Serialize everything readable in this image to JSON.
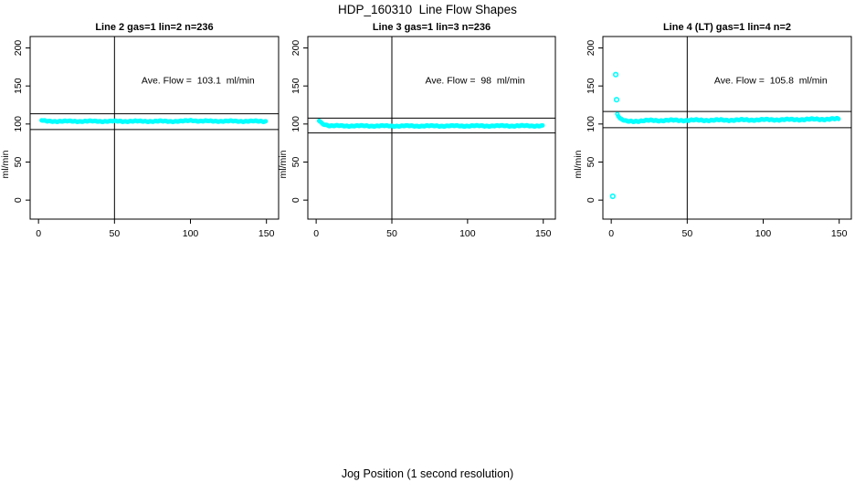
{
  "figure": {
    "title": "HDP_160310  Line Flow Shapes",
    "xlabel": "Jog Position (1 second resolution)",
    "ylabel": "ml/min",
    "point_color": "#00ffff",
    "line_color": "#000000"
  },
  "chart_data": [
    {
      "type": "scatter",
      "title": "Line 2 gas=1 lin=2 n=236",
      "n": 236,
      "ave_flow": 103.1,
      "ave_flow_label": "Ave. Flow =  103.1  ml/min",
      "xlim": [
        -5.5,
        158
      ],
      "ylim": [
        -25,
        215
      ],
      "x_ticks": [
        0,
        50,
        100,
        150
      ],
      "y_ticks": [
        0,
        50,
        100,
        150,
        200
      ],
      "vline_x": 50,
      "hlines": [
        92.8,
        113.4
      ],
      "series_trend": [
        [
          2,
          104.8
        ],
        [
          5,
          103.6
        ],
        [
          95,
          103.6
        ],
        [
          101,
          104.8
        ],
        [
          106,
          103.8
        ],
        [
          150,
          103.6
        ]
      ],
      "outliers": [],
      "point_step": 0.65,
      "jitter": 0.9
    },
    {
      "type": "scatter",
      "title": "Line 3 gas=1 lin=3 n=236",
      "n": 236,
      "ave_flow": 98,
      "ave_flow_label": "Ave. Flow =  98  ml/min",
      "xlim": [
        -5.5,
        158
      ],
      "ylim": [
        -25,
        215
      ],
      "x_ticks": [
        0,
        50,
        100,
        150
      ],
      "y_ticks": [
        0,
        50,
        100,
        150,
        200
      ],
      "vline_x": 50,
      "hlines": [
        88.2,
        107.8
      ],
      "series_trend": [
        [
          2,
          104.5
        ],
        [
          4,
          100.5
        ],
        [
          9,
          97.6
        ],
        [
          60,
          97.4
        ],
        [
          150,
          97.6
        ]
      ],
      "outliers": [],
      "point_step": 0.65,
      "jitter": 0.9
    },
    {
      "type": "scatter",
      "title": "Line 4 (LT) gas=1 lin=4 n=2",
      "n": 2,
      "ave_flow": 105.8,
      "ave_flow_label": "Ave. Flow =  105.8  ml/min",
      "xlim": [
        -5.5,
        158
      ],
      "ylim": [
        -25,
        215
      ],
      "x_ticks": [
        0,
        50,
        100,
        150
      ],
      "y_ticks": [
        0,
        50,
        100,
        150,
        200
      ],
      "vline_x": 50,
      "hlines": [
        95.2,
        116.4
      ],
      "series_trend": [
        [
          4,
          113.5
        ],
        [
          6,
          106.5
        ],
        [
          10,
          103.3
        ],
        [
          25,
          104.6
        ],
        [
          80,
          105.2
        ],
        [
          120,
          105.8
        ],
        [
          150,
          106.6
        ]
      ],
      "outliers": [
        [
          1,
          5
        ],
        [
          3,
          165
        ],
        [
          3.5,
          132
        ]
      ],
      "point_step": 0.65,
      "jitter": 1.2
    }
  ]
}
